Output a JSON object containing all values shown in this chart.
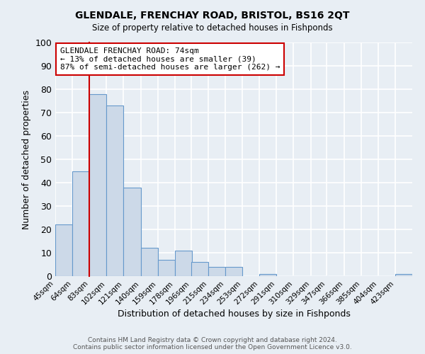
{
  "title": "GLENDALE, FRENCHAY ROAD, BRISTOL, BS16 2QT",
  "subtitle": "Size of property relative to detached houses in Fishponds",
  "xlabel": "Distribution of detached houses by size in Fishponds",
  "ylabel": "Number of detached properties",
  "bin_labels": [
    "45sqm",
    "64sqm",
    "83sqm",
    "102sqm",
    "121sqm",
    "140sqm",
    "159sqm",
    "178sqm",
    "196sqm",
    "215sqm",
    "234sqm",
    "253sqm",
    "272sqm",
    "291sqm",
    "310sqm",
    "329sqm",
    "347sqm",
    "366sqm",
    "385sqm",
    "404sqm",
    "423sqm"
  ],
  "bar_heights": [
    22,
    45,
    78,
    73,
    38,
    12,
    7,
    11,
    6,
    4,
    4,
    0,
    1,
    0,
    0,
    0,
    0,
    0,
    0,
    0,
    1
  ],
  "bar_color": "#ccd9e8",
  "bar_edge_color": "#6699cc",
  "ylim": [
    0,
    100
  ],
  "vline_color": "#cc0000",
  "annotation_title": "GLENDALE FRENCHAY ROAD: 74sqm",
  "annotation_line1": "← 13% of detached houses are smaller (39)",
  "annotation_line2": "87% of semi-detached houses are larger (262) →",
  "annotation_box_color": "white",
  "annotation_box_edge": "#cc0000",
  "footer_line1": "Contains HM Land Registry data © Crown copyright and database right 2024.",
  "footer_line2": "Contains public sector information licensed under the Open Government Licence v3.0.",
  "background_color": "#e8eef4",
  "bin_width": 19,
  "vline_bin_index": 1
}
